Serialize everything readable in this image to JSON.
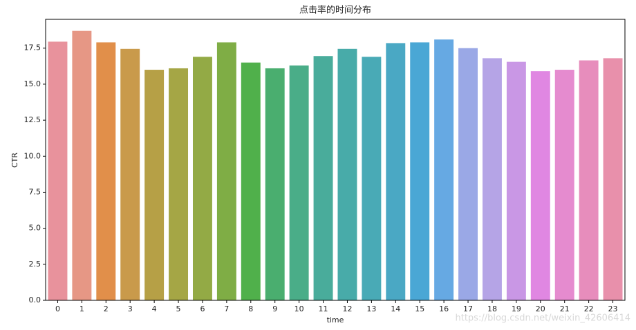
{
  "chart_data": {
    "type": "bar",
    "title": "点击率的时间分布",
    "x_label": "time",
    "y_label": "CTR",
    "categories": [
      "0",
      "1",
      "2",
      "3",
      "4",
      "5",
      "6",
      "7",
      "8",
      "9",
      "10",
      "11",
      "12",
      "13",
      "14",
      "15",
      "16",
      "17",
      "18",
      "19",
      "20",
      "21",
      "22",
      "23"
    ],
    "values": [
      17.95,
      18.7,
      17.9,
      17.45,
      16.0,
      16.1,
      16.9,
      17.9,
      16.5,
      16.1,
      16.3,
      16.95,
      17.45,
      16.9,
      17.85,
      17.9,
      18.1,
      17.5,
      16.8,
      16.55,
      15.9,
      16.0,
      16.65,
      16.8
    ],
    "colors": [
      "#e8929c",
      "#e69785",
      "#e18f4a",
      "#c99a4b",
      "#b6a046",
      "#a5a645",
      "#93aa45",
      "#7fad45",
      "#50b04b",
      "#4aae6f",
      "#4aad88",
      "#49ac9b",
      "#48aba9",
      "#49aab6",
      "#4aa8c4",
      "#4aa7d5",
      "#66a9e3",
      "#9aa8e6",
      "#b5a4e6",
      "#c997e5",
      "#e087e2",
      "#e58bcf",
      "#e78dbc",
      "#e890ab"
    ],
    "ylim": [
      0,
      19.5
    ],
    "yticks": [
      {
        "value": 0,
        "label": "0.0"
      },
      {
        "value": 2.5,
        "label": "2.5"
      },
      {
        "value": 5,
        "label": "5.0"
      },
      {
        "value": 7.5,
        "label": "7.5"
      },
      {
        "value": 10,
        "label": "10.0"
      },
      {
        "value": 12.5,
        "label": "12.5"
      },
      {
        "value": 15,
        "label": "15.0"
      },
      {
        "value": 17.5,
        "label": "17.5"
      }
    ],
    "watermark": "https://blog.csdn.net/weixin_42606414"
  }
}
